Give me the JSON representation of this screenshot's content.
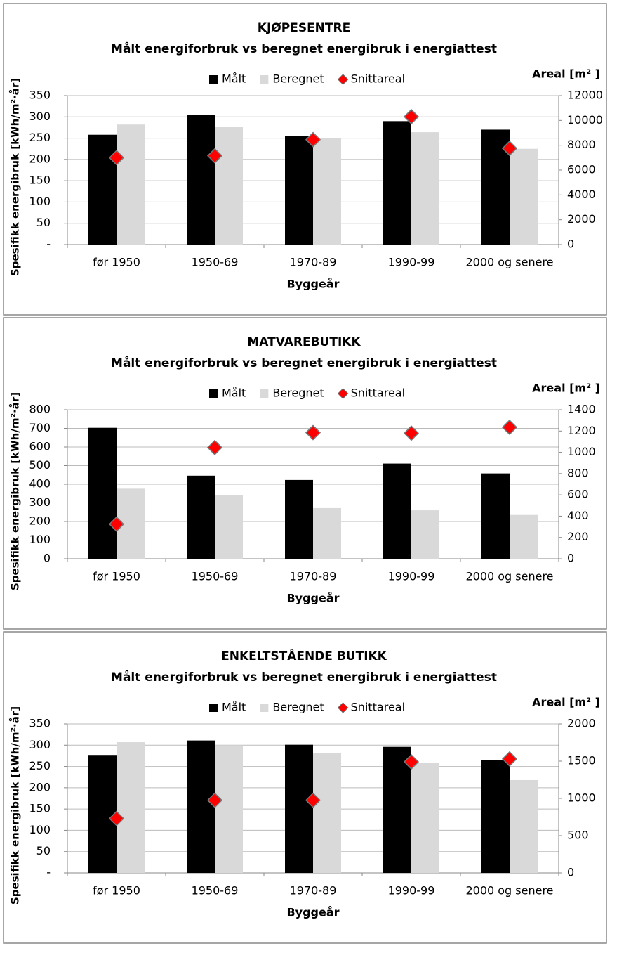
{
  "chart_data": [
    {
      "type": "bar",
      "title": "KJØPESENTRE",
      "subtitle": "Målt energiforbruk  vs beregnet energibruk i energiattest",
      "x_label": "Byggeår",
      "y_label": "Spesifikk energibruk [kWh/m²·år]",
      "y2_label": "Areal [m² ]",
      "categories": [
        "før 1950",
        "1950-69",
        "1970-89",
        "1990-99",
        "2000 og senere"
      ],
      "series": [
        {
          "name": "Målt",
          "color": "#000000",
          "values": [
            258,
            305,
            255,
            290,
            270
          ]
        },
        {
          "name": "Beregnet",
          "color": "#d9d9d9",
          "values": [
            282,
            277,
            250,
            264,
            225
          ]
        },
        {
          "name": "Snittareal",
          "color": "#ff0000",
          "axis": "y2",
          "values": [
            7000,
            7150,
            8450,
            10300,
            7750
          ]
        }
      ],
      "ylim": [
        0,
        350
      ],
      "yticks": [
        {
          "value": 0,
          "label": "-"
        },
        50,
        100,
        150,
        200,
        250,
        300,
        350
      ],
      "y2lim": [
        0,
        12000
      ],
      "y2ticks": [
        0,
        2000,
        4000,
        6000,
        8000,
        10000,
        12000
      ],
      "grid": true
    },
    {
      "type": "bar",
      "title": "MATVAREBUTIKK",
      "subtitle": "Målt energiforbruk  vs beregnet energibruk i energiattest",
      "x_label": "Byggeår",
      "y_label": "Spesifikk energibruk [kWh/m²·år]",
      "y2_label": "Areal [m² ]",
      "categories": [
        "før 1950",
        "1950-69",
        "1970-89",
        "1990-99",
        "2000 og senere"
      ],
      "series": [
        {
          "name": "Målt",
          "color": "#000000",
          "values": [
            703,
            446,
            423,
            511,
            458
          ]
        },
        {
          "name": "Beregnet",
          "color": "#d9d9d9",
          "values": [
            376,
            340,
            272,
            260,
            235
          ]
        },
        {
          "name": "Snittareal",
          "color": "#ff0000",
          "axis": "y2",
          "values": [
            325,
            1045,
            1185,
            1180,
            1235
          ]
        }
      ],
      "ylim": [
        0,
        800
      ],
      "yticks": [
        0,
        100,
        200,
        300,
        400,
        500,
        600,
        700,
        800
      ],
      "y2lim": [
        0,
        1400
      ],
      "y2ticks": [
        0,
        200,
        400,
        600,
        800,
        1000,
        1200,
        1400
      ],
      "grid": true
    },
    {
      "type": "bar",
      "title": "ENKELTSTÅENDE BUTIKK",
      "subtitle": "Målt energiforbruk  vs beregnet energibruk i energiattest",
      "x_label": "Byggeår",
      "y_label": "Spesifikk energibruk [kWh/m²·år]",
      "y2_label": "Areal [m² ]",
      "categories": [
        "før 1950",
        "1950-69",
        "1970-89",
        "1990-99",
        "2000 og senere"
      ],
      "series": [
        {
          "name": "Målt",
          "color": "#000000",
          "values": [
            277,
            311,
            301,
            296,
            265
          ]
        },
        {
          "name": "Beregnet",
          "color": "#d9d9d9",
          "values": [
            307,
            300,
            282,
            258,
            218
          ]
        },
        {
          "name": "Snittareal",
          "color": "#ff0000",
          "axis": "y2",
          "values": [
            730,
            975,
            975,
            1490,
            1530
          ]
        }
      ],
      "ylim": [
        0,
        350
      ],
      "yticks": [
        {
          "value": 0,
          "label": "-"
        },
        50,
        100,
        150,
        200,
        250,
        300,
        350
      ],
      "y2lim": [
        0,
        2000
      ],
      "y2ticks": [
        0,
        500,
        1000,
        1500,
        2000
      ],
      "grid": true
    }
  ]
}
